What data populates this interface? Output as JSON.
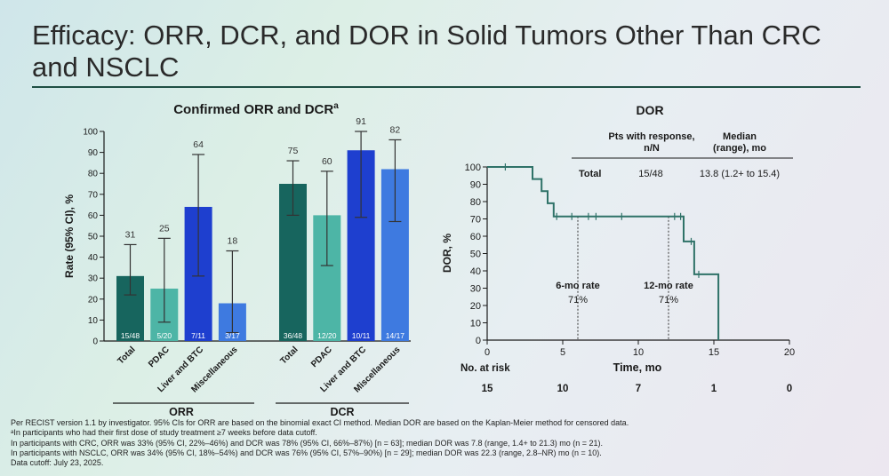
{
  "slide": {
    "title": "Efficacy: ORR, DCR, and DOR in Solid Tumors Other Than CRC and NSCLC"
  },
  "colors": {
    "title_rule": "#1f4f44",
    "bar_total": "#17655e",
    "bar_pdac": "#4db5a6",
    "bar_liver": "#1e3fcf",
    "bar_misc": "#3e7ae0",
    "km_line": "#2f7268"
  },
  "chart_data": [
    {
      "type": "bar",
      "title": "Confirmed ORR and DCR",
      "title_sup": "a",
      "ylabel": "Rate (95% CI), %",
      "ylim": [
        0,
        100
      ],
      "yticks": [
        0,
        10,
        20,
        30,
        40,
        50,
        60,
        70,
        80,
        90,
        100
      ],
      "groups": [
        {
          "name": "ORR",
          "bars": [
            {
              "category": "Total",
              "value": 31,
              "ci": [
                22,
                46
              ],
              "label": "31",
              "n": "15/48",
              "color": "#17655e"
            },
            {
              "category": "PDAC",
              "value": 25,
              "ci": [
                9,
                49
              ],
              "label": "25",
              "n": "5/20",
              "color": "#4db5a6"
            },
            {
              "category": "Liver and BTC",
              "value": 64,
              "ci": [
                31,
                89
              ],
              "label": "64",
              "n": "7/11",
              "color": "#1e3fcf"
            },
            {
              "category": "Miscellaneous",
              "value": 18,
              "ci": [
                4,
                43
              ],
              "label": "18",
              "n": "3/17",
              "color": "#3e7ae0"
            }
          ]
        },
        {
          "name": "DCR",
          "bars": [
            {
              "category": "Total",
              "value": 75,
              "ci": [
                60,
                86
              ],
              "label": "75",
              "n": "36/48",
              "color": "#17655e"
            },
            {
              "category": "PDAC",
              "value": 60,
              "ci": [
                36,
                81
              ],
              "label": "60",
              "n": "12/20",
              "color": "#4db5a6"
            },
            {
              "category": "Liver and BTC",
              "value": 91,
              "ci": [
                59,
                100
              ],
              "label": "91",
              "n": "10/11",
              "color": "#1e3fcf"
            },
            {
              "category": "Miscellaneous",
              "value": 82,
              "ci": [
                57,
                96
              ],
              "label": "82",
              "n": "14/17",
              "color": "#3e7ae0"
            }
          ]
        }
      ]
    },
    {
      "type": "line",
      "subtype": "kaplan-meier",
      "title": "DOR",
      "xlabel": "Time, mo",
      "ylabel": "DOR, %",
      "xlim": [
        0,
        20
      ],
      "ylim": [
        0,
        100
      ],
      "xticks": [
        0,
        5,
        10,
        15,
        20
      ],
      "yticks": [
        0,
        10,
        20,
        30,
        40,
        50,
        60,
        70,
        80,
        90,
        100
      ],
      "steps": [
        [
          0,
          100
        ],
        [
          3,
          100
        ],
        [
          3,
          93
        ],
        [
          3.6,
          93
        ],
        [
          3.6,
          86
        ],
        [
          4,
          86
        ],
        [
          4,
          79
        ],
        [
          4.4,
          79
        ],
        [
          4.4,
          71.4
        ],
        [
          13,
          71.4
        ],
        [
          13,
          57
        ],
        [
          13.7,
          57
        ],
        [
          13.7,
          38
        ],
        [
          15.3,
          38
        ],
        [
          15.3,
          0
        ]
      ],
      "censors": [
        [
          1.2,
          100
        ],
        [
          4.6,
          71.4
        ],
        [
          5.6,
          71.4
        ],
        [
          6.7,
          71.4
        ],
        [
          7.2,
          71.4
        ],
        [
          8.9,
          71.4
        ],
        [
          12.4,
          71.4
        ],
        [
          12.8,
          71.4
        ],
        [
          13.5,
          57
        ],
        [
          14,
          38
        ]
      ],
      "summary": {
        "header_pts": "Pts with response,",
        "header_pts_2": "n/N",
        "header_median": "Median",
        "header_median_2": "(range), mo",
        "row_label": "Total",
        "row_pts": "15/48",
        "row_median": "13.8 (1.2+ to 15.4)"
      },
      "annotations": [
        {
          "label": "6-mo rate",
          "value": "71%",
          "x": 6
        },
        {
          "label": "12-mo rate",
          "value": "71%",
          "x": 12
        }
      ],
      "risk_table": {
        "title": "No. at risk",
        "times": [
          0,
          5,
          10,
          15,
          20
        ],
        "counts": [
          "15",
          "10",
          "7",
          "1",
          "0"
        ]
      }
    }
  ],
  "footnotes": [
    "Per RECIST version 1.1 by investigator. 95% CIs for ORR are based on the binomial exact CI method. Median DOR are based on the Kaplan-Meier method for censored data.",
    "ᵃIn participants who had their first dose of study treatment ≥7 weeks before data cutoff.",
    "In participants with CRC, ORR was 33% (95% CI, 22%–46%) and DCR was 78% (95% CI, 66%–87%) [n = 63]; median DOR was 7.8 (range, 1.4+ to 21.3) mo (n = 21).",
    "In participants with NSCLC, ORR was 34% (95% CI, 18%–54%) and DCR was 76% (95% CI, 57%–90%) [n = 29]; median DOR was 22.3 (range, 2.8–NR) mo (n = 10).",
    "Data cutoff: July 23, 2025."
  ]
}
